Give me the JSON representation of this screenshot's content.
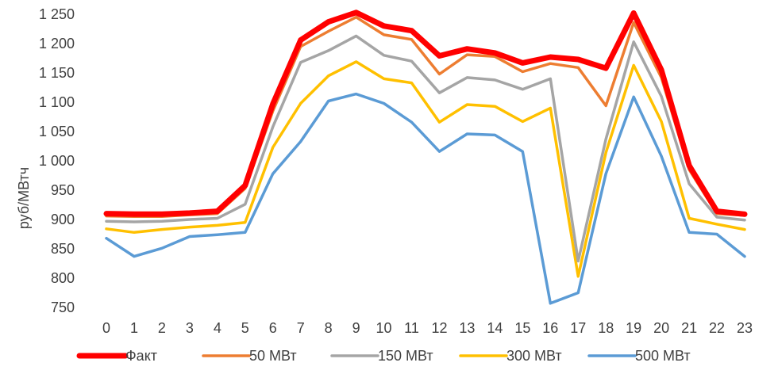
{
  "chart_data": {
    "type": "line",
    "xlabel": "",
    "ylabel": "руб/МВтч",
    "x": [
      0,
      1,
      2,
      3,
      4,
      5,
      6,
      7,
      8,
      9,
      10,
      11,
      12,
      13,
      14,
      15,
      16,
      17,
      18,
      19,
      20,
      21,
      22,
      23
    ],
    "ylim": [
      750,
      1250
    ],
    "yticks": [
      750,
      800,
      850,
      900,
      950,
      1000,
      1050,
      1100,
      1150,
      1200,
      1250
    ],
    "ytick_labels": [
      "750",
      "800",
      "850",
      "900",
      "950",
      "1 000",
      "1 050",
      "1 100",
      "1 150",
      "1 200",
      "1 250"
    ],
    "grid": false,
    "legend_position": "bottom",
    "series": [
      {
        "name": "Факт",
        "color": "#ff0000",
        "values": [
          910,
          909,
          909,
          911,
          914,
          958,
          1097,
          1206,
          1237,
          1253,
          1230,
          1222,
          1179,
          1191,
          1184,
          1167,
          1177,
          1173,
          1158,
          1252,
          1155,
          992,
          914,
          909
        ]
      },
      {
        "name": "50 МВт",
        "color": "#ed7d31",
        "values": [
          906,
          905,
          905,
          908,
          910,
          953,
          1085,
          1195,
          1221,
          1245,
          1215,
          1207,
          1148,
          1181,
          1178,
          1152,
          1166,
          1159,
          1094,
          1236,
          1142,
          985,
          910,
          907
        ]
      },
      {
        "name": "150 МВт",
        "color": "#a5a5a5",
        "values": [
          897,
          896,
          897,
          900,
          902,
          926,
          1058,
          1168,
          1188,
          1213,
          1180,
          1170,
          1116,
          1142,
          1138,
          1122,
          1140,
          829,
          1037,
          1203,
          1110,
          961,
          904,
          899
        ]
      },
      {
        "name": "300 МВт",
        "color": "#ffc000",
        "values": [
          884,
          878,
          883,
          887,
          890,
          895,
          1023,
          1098,
          1145,
          1169,
          1140,
          1133,
          1066,
          1096,
          1093,
          1067,
          1090,
          803,
          1014,
          1163,
          1067,
          902,
          892,
          883
        ]
      },
      {
        "name": "500 МВт",
        "color": "#5b9bd5",
        "values": [
          868,
          837,
          851,
          871,
          874,
          878,
          978,
          1033,
          1102,
          1114,
          1098,
          1066,
          1016,
          1046,
          1044,
          1016,
          757,
          775,
          978,
          1109,
          1008,
          878,
          875,
          837
        ]
      }
    ]
  }
}
